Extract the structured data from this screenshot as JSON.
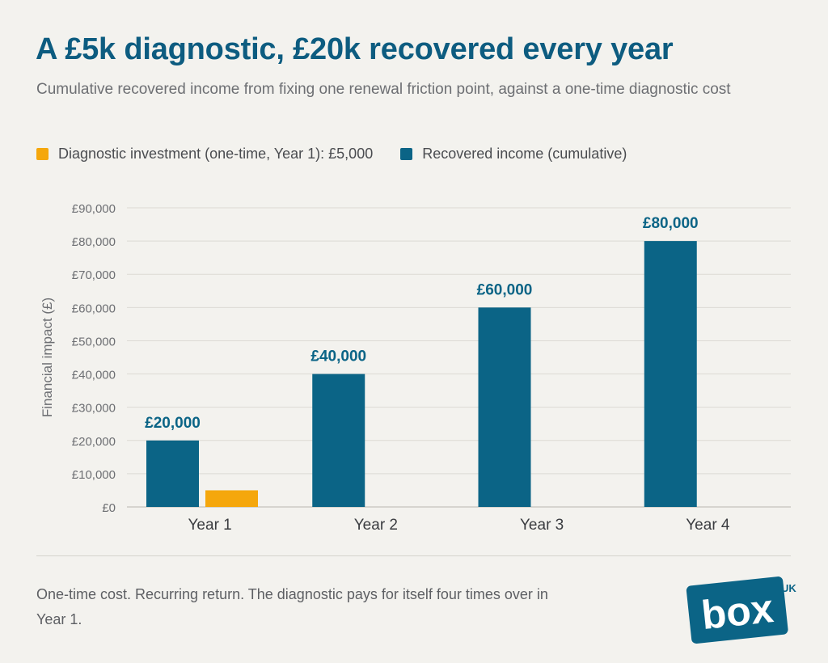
{
  "header": {
    "title": "A £5k diagnostic, £20k recovered every year",
    "subtitle": "Cumulative recovered income from fixing one renewal friction point, against a one-time diagnostic cost"
  },
  "legend": {
    "items": [
      {
        "label": "Diagnostic investment (one-time, Year 1): £5,000",
        "color": "#f5a70c"
      },
      {
        "label": "Recovered income (cumulative)",
        "color": "#0b6486"
      }
    ]
  },
  "footer": {
    "note": "One-time cost. Recurring return. The diagnostic pays for itself four times over in Year 1."
  },
  "logo": {
    "text": "box",
    "superscript": "UK",
    "color": "#0b6486"
  },
  "chart_data": {
    "type": "bar",
    "title": "A £5k diagnostic, £20k recovered every year",
    "subtitle": "Cumulative recovered income from fixing one renewal friction point, against a one-time diagnostic cost",
    "categories": [
      "Year 1",
      "Year 2",
      "Year 3",
      "Year 4"
    ],
    "series": [
      {
        "name": "Recovered income (cumulative)",
        "values": [
          20000,
          40000,
          60000,
          80000
        ],
        "color": "#0b6486",
        "data_labels": [
          "£20,000",
          "£40,000",
          "£60,000",
          "£80,000"
        ]
      },
      {
        "name": "Diagnostic investment (one-time, Year 1): £5,000",
        "values": [
          5000,
          null,
          null,
          null
        ],
        "color": "#f5a70c"
      }
    ],
    "ylabel": "Financial impact (£)",
    "xlabel": "",
    "ylim": [
      0,
      90000
    ],
    "yticks": [
      0,
      10000,
      20000,
      30000,
      40000,
      50000,
      60000,
      70000,
      80000,
      90000
    ],
    "ytick_labels": [
      "£0",
      "£10,000",
      "£20,000",
      "£30,000",
      "£40,000",
      "£50,000",
      "£60,000",
      "£70,000",
      "£80,000",
      "£90,000"
    ],
    "grid": true,
    "legend_position": "top-left"
  }
}
